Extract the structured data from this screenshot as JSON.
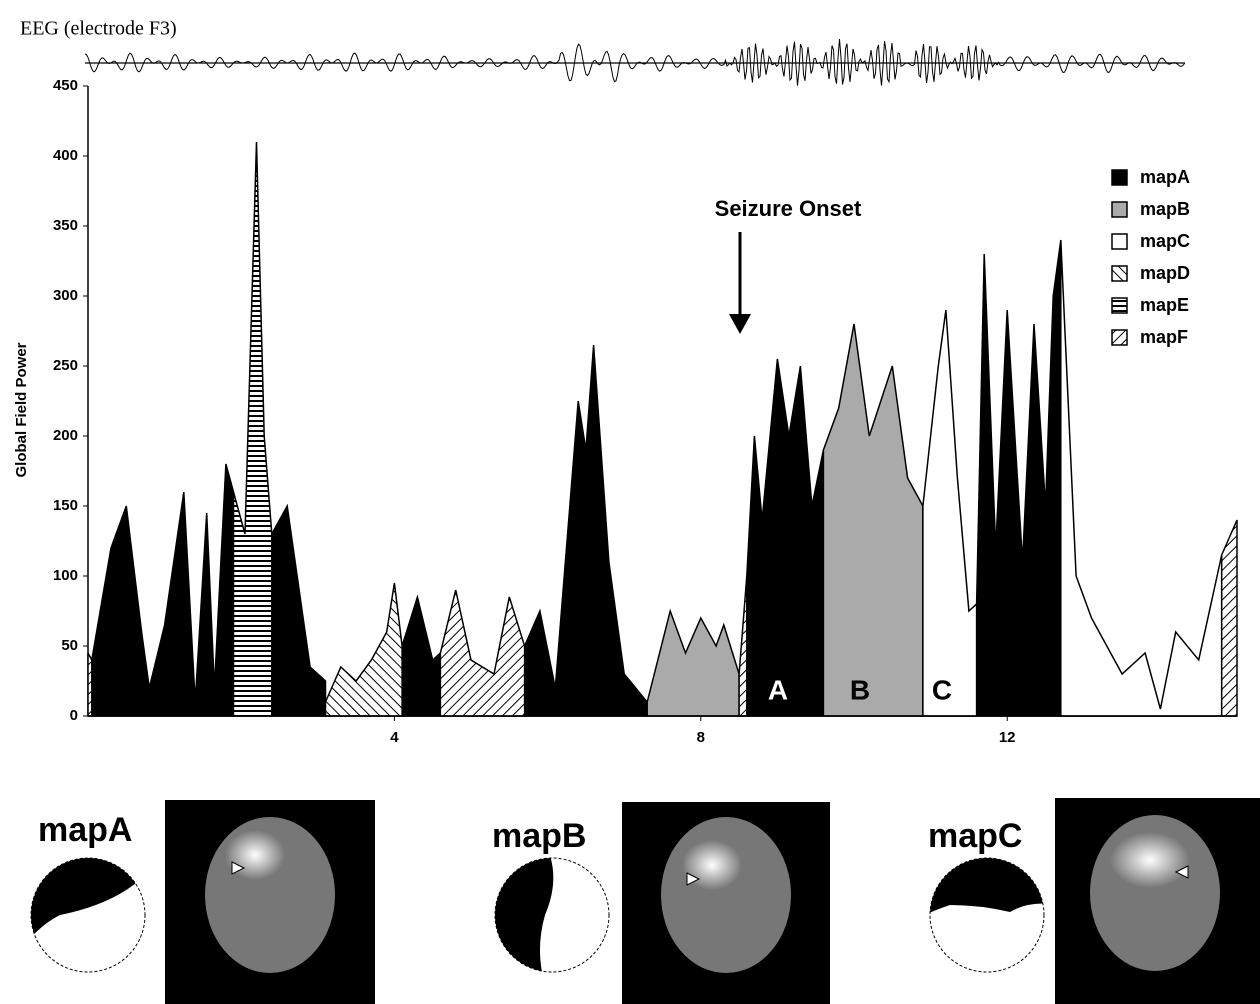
{
  "chart_data": {
    "type": "area",
    "trace_label": "EEG (electrode F3)",
    "y_label": "Global Field Power",
    "xlim": [
      0,
      15
    ],
    "xticks": [
      4,
      8,
      12
    ],
    "ylim": [
      0,
      450
    ],
    "yticks": [
      0,
      50,
      100,
      150,
      200,
      250,
      300,
      350,
      400,
      450
    ],
    "annotations": [
      "Seizure Onset",
      "A",
      "B",
      "C"
    ],
    "legend": "upper right",
    "series": [
      {
        "name": "mapA",
        "color": "#000000",
        "fill": "solid",
        "x": [
          0.05,
          0.3,
          0.5,
          0.7,
          0.8,
          1.0,
          1.25,
          1.4,
          1.55,
          1.65,
          1.8,
          1.9,
          null,
          2.4,
          2.6,
          2.9,
          3.1,
          null,
          4.1,
          4.3,
          4.5,
          4.6,
          null,
          5.7,
          5.9,
          6.1,
          6.4,
          6.5,
          6.6,
          6.8,
          7.0,
          7.3,
          null,
          8.6,
          8.7,
          8.8,
          9.0,
          9.15,
          9.3,
          9.45,
          9.6,
          null,
          11.6,
          11.7,
          11.85,
          12.0,
          12.2,
          12.35,
          12.5,
          12.6,
          12.7
        ],
        "values": [
          40,
          120,
          150,
          60,
          20,
          65,
          160,
          10,
          145,
          20,
          180,
          160,
          null,
          130,
          150,
          35,
          25,
          null,
          50,
          85,
          40,
          45,
          null,
          50,
          75,
          20,
          225,
          190,
          265,
          110,
          30,
          10,
          null,
          100,
          200,
          140,
          255,
          200,
          250,
          150,
          190,
          null,
          80,
          330,
          120,
          290,
          110,
          280,
          150,
          300,
          340
        ]
      },
      {
        "name": "mapB",
        "color": "#aaaaaa",
        "fill": "solid",
        "x": [
          7.3,
          7.6,
          7.8,
          8.0,
          8.2,
          8.3,
          8.5,
          null,
          9.6,
          9.8,
          10.0,
          10.2,
          10.5,
          10.7,
          10.9
        ],
        "values": [
          10,
          75,
          45,
          70,
          50,
          65,
          30,
          null,
          190,
          220,
          280,
          200,
          250,
          170,
          150
        ]
      },
      {
        "name": "mapC",
        "color": "#ffffff",
        "fill": "solid",
        "x": [
          10.9,
          11.1,
          11.2,
          11.35,
          11.5,
          11.6,
          null,
          12.7,
          12.9,
          13.1,
          13.5,
          13.8,
          14.0,
          14.2,
          14.5,
          14.8
        ],
        "values": [
          150,
          250,
          290,
          170,
          75,
          80,
          null,
          340,
          100,
          70,
          30,
          45,
          5,
          60,
          40,
          115
        ]
      },
      {
        "name": "mapD",
        "color": "#000000",
        "fill": "forward-hatch",
        "x": [
          3.1,
          3.3,
          3.5,
          3.7,
          3.9,
          4.0,
          4.1
        ],
        "values": [
          10,
          35,
          25,
          40,
          60,
          95,
          50
        ]
      },
      {
        "name": "mapE",
        "color": "#000000",
        "fill": "horizontal-hatch",
        "x": [
          1.9,
          2.05,
          2.2,
          2.3,
          2.4
        ],
        "values": [
          160,
          130,
          410,
          200,
          130
        ]
      },
      {
        "name": "mapF",
        "color": "#000000",
        "fill": "back-hatch",
        "x": [
          0,
          0.05,
          null,
          4.6,
          4.8,
          5.0,
          5.3,
          5.5,
          5.7,
          null,
          8.5,
          8.6,
          null,
          14.8,
          15
        ],
        "values": [
          45,
          40,
          null,
          45,
          90,
          40,
          30,
          85,
          50,
          null,
          30,
          100,
          null,
          115,
          140
        ]
      }
    ]
  }
}
